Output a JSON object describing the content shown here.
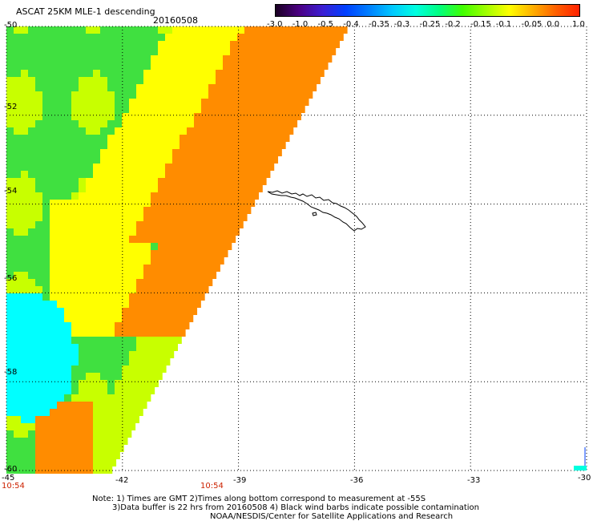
{
  "header": {
    "title": "ASCAT 25KM MLE-1 descending",
    "date": "20160508"
  },
  "colorbar": {
    "labels": [
      "-3.0",
      "-1.0",
      "-0.5",
      "-0.4",
      "-0.35",
      "-0.3",
      "-0.25",
      "-0.2",
      "-0.15",
      "-0.1",
      "-0.05",
      "0.0",
      "1.0"
    ],
    "gradient": [
      "#1a0022",
      "#4b0082",
      "#3c1ed2",
      "#0040ff",
      "#0080ff",
      "#00c8ff",
      "#00ffe0",
      "#00ff80",
      "#40ff00",
      "#a0ff00",
      "#ffff00",
      "#ffb000",
      "#ff6000",
      "#ff2000"
    ]
  },
  "map": {
    "lat_labels": [
      "-50",
      "-52",
      "-54",
      "-56",
      "-58",
      "-60"
    ],
    "lon_labels": [
      "-45",
      "-42",
      "-39",
      "-36",
      "-33",
      "-30"
    ],
    "lat_range": [
      -60,
      -50
    ],
    "lon_range": [
      -45,
      -30
    ],
    "grid": "dotted",
    "time_labels": [
      "10:54",
      "10:54"
    ],
    "time_label_color": "#cc2200"
  },
  "notes": {
    "line1": "Note: 1) Times are GMT 2)Times along bottom correspond to measurement at -55S",
    "line2": "3)Data buffer is 22 hrs from 20160508 4) Black wind barbs indicate possible contamination",
    "line3": "NOAA/NESDIS/Center for Satellite Applications and Research"
  },
  "colors": {
    "orange": "#ff8c00",
    "yellow": "#ffff00",
    "yellow_green": "#c8ff00",
    "green": "#40e040",
    "cyan": "#00ffff"
  }
}
